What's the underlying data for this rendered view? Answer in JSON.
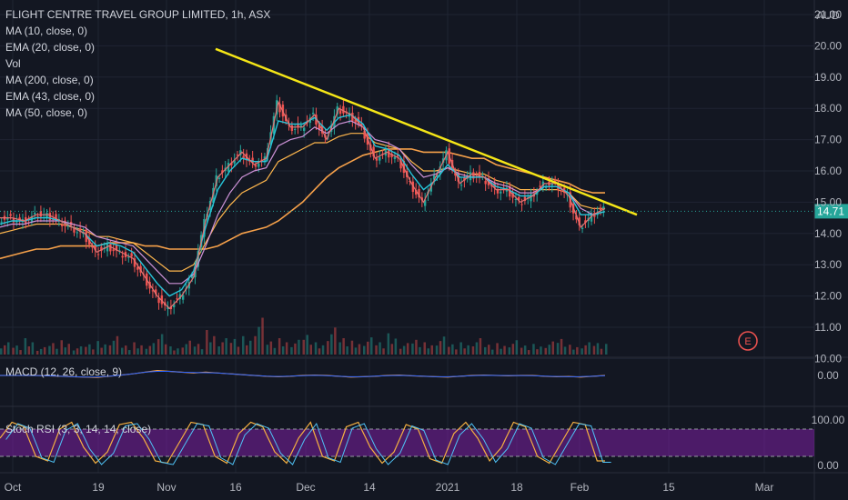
{
  "window": {
    "symbol_line": "FLIGHT CENTRE TRAVEL GROUP LIMITED, 1h, ASX",
    "indicators": [
      "MA (10, close, 0)",
      "EMA (20, close, 0)",
      "Vol",
      "MA (200, close, 0)",
      "EMA (43, close, 0)",
      "MA (50, close, 0)"
    ],
    "currency": "AUD",
    "last_price": "14.71",
    "earnings_marker": "E"
  },
  "colors": {
    "background": "#131722",
    "grid": "#1f2433",
    "up": "#26a69a",
    "down": "#ef5350",
    "trendline": "#f5e617",
    "ma10": "#e57373",
    "ema20": "#26c6da",
    "ma200": "#f7a14a",
    "ema43": "#ffb74d",
    "ma50": "#ce93d8",
    "stoch_band": "#7b1fa2"
  },
  "chart_data": [
    {
      "type": "candlestick",
      "title": "FLIGHT CENTRE TRAVEL GROUP LIMITED, 1h, ASX",
      "ylabel": "AUD",
      "ylim": [
        9.6,
        21.0
      ],
      "yticks": [
        "10.00",
        "11.00",
        "12.00",
        "13.00",
        "14.00",
        "15.00",
        "16.00",
        "17.00",
        "18.00",
        "19.00",
        "20.00",
        "21.00"
      ],
      "xticks": [
        "Oct",
        "19",
        "Nov",
        "16",
        "Dec",
        "14",
        "2021",
        "18",
        "Feb",
        "15",
        "Mar"
      ],
      "last_price": 14.71,
      "series": [
        {
          "name": "MA (10, close, 0)",
          "values": [
            14.5,
            14.5,
            14.4,
            14.6,
            14.6,
            14.4,
            14.2,
            14.0,
            13.4,
            13.6,
            13.4,
            13.2,
            12.6,
            12.0,
            11.6,
            12.0,
            12.6,
            14.4,
            15.8,
            16.2,
            16.6,
            16.2,
            16.4,
            18.2,
            17.4,
            17.4,
            17.8,
            17.0,
            18.0,
            17.8,
            17.4,
            16.4,
            16.6,
            16.4,
            15.6,
            15.0,
            15.8,
            16.6,
            15.6,
            15.9,
            15.8,
            15.4,
            15.4,
            15.0,
            15.2,
            15.6,
            15.6,
            15.2,
            14.2,
            14.6,
            14.8
          ]
        },
        {
          "name": "EMA (20, close, 0)",
          "values": [
            14.3,
            14.4,
            14.4,
            14.5,
            14.5,
            14.4,
            14.2,
            14.0,
            13.6,
            13.7,
            13.6,
            13.4,
            12.9,
            12.4,
            12.0,
            12.2,
            12.8,
            14.2,
            15.4,
            16.0,
            16.4,
            16.3,
            16.3,
            17.6,
            17.5,
            17.5,
            17.7,
            17.3,
            17.7,
            17.8,
            17.5,
            16.8,
            16.7,
            16.5,
            15.9,
            15.4,
            15.7,
            16.2,
            15.8,
            15.8,
            15.8,
            15.5,
            15.4,
            15.2,
            15.2,
            15.5,
            15.5,
            15.3,
            14.6,
            14.6,
            14.7
          ]
        },
        {
          "name": "MA (200, close, 0)",
          "values": [
            13.2,
            13.3,
            13.4,
            13.5,
            13.5,
            13.6,
            13.6,
            13.6,
            13.6,
            13.7,
            13.7,
            13.7,
            13.6,
            13.6,
            13.5,
            13.5,
            13.5,
            13.5,
            13.6,
            13.8,
            14.0,
            14.1,
            14.2,
            14.4,
            14.7,
            15.0,
            15.4,
            15.8,
            16.1,
            16.3,
            16.5,
            16.6,
            16.7,
            16.7,
            16.7,
            16.6,
            16.6,
            16.6,
            16.5,
            16.4,
            16.4,
            16.2,
            16.1,
            16.0,
            15.9,
            15.8,
            15.7,
            15.6,
            15.4,
            15.3,
            15.3
          ]
        },
        {
          "name": "EMA (43, close, 0)",
          "values": [
            14.0,
            14.1,
            14.2,
            14.3,
            14.3,
            14.3,
            14.2,
            14.1,
            13.9,
            13.9,
            13.8,
            13.7,
            13.4,
            13.1,
            12.8,
            12.8,
            13.0,
            13.7,
            14.4,
            14.9,
            15.3,
            15.5,
            15.7,
            16.3,
            16.5,
            16.7,
            16.9,
            16.9,
            17.1,
            17.2,
            17.2,
            16.9,
            16.8,
            16.7,
            16.3,
            16.0,
            16.0,
            16.1,
            16.0,
            15.9,
            15.9,
            15.7,
            15.6,
            15.4,
            15.4,
            15.4,
            15.4,
            15.3,
            14.9,
            14.8,
            14.8
          ]
        },
        {
          "name": "MA (50, close, 0)",
          "values": [
            14.2,
            14.3,
            14.3,
            14.4,
            14.4,
            14.4,
            14.3,
            14.2,
            13.9,
            13.8,
            13.7,
            13.6,
            13.2,
            12.8,
            12.4,
            12.4,
            12.7,
            13.6,
            14.6,
            15.3,
            15.8,
            16.0,
            16.1,
            16.8,
            17.0,
            17.1,
            17.4,
            17.2,
            17.5,
            17.6,
            17.4,
            17.0,
            16.9,
            16.7,
            16.2,
            15.8,
            15.9,
            16.1,
            15.9,
            15.8,
            15.8,
            15.6,
            15.5,
            15.3,
            15.3,
            15.5,
            15.5,
            15.3,
            14.8,
            14.6,
            14.7
          ]
        }
      ],
      "trendline": {
        "start": 19.9,
        "end": 14.6
      }
    },
    {
      "type": "bar",
      "title": "Vol",
      "ylim": [
        0,
        100
      ],
      "values": [
        30,
        22,
        40,
        18,
        28,
        35,
        20,
        25,
        33,
        45,
        22,
        30,
        28,
        50,
        20,
        34,
        26,
        60,
        40,
        38,
        45,
        90,
        32,
        40,
        36,
        48,
        30,
        66,
        40,
        34,
        42,
        30,
        52,
        28,
        36,
        30,
        44,
        25,
        30,
        40,
        24,
        28,
        35,
        22,
        26,
        32,
        38,
        24,
        30,
        28,
        26
      ]
    },
    {
      "type": "line",
      "title": "MACD (12, 26, close, 9)",
      "yticks": [
        "0.00"
      ],
      "values": [
        0.0,
        0.0,
        0.0,
        0.0,
        -0.02,
        -0.05,
        -0.08,
        -0.1,
        -0.12,
        -0.05,
        0.02,
        0.1,
        0.2,
        0.3,
        0.25,
        0.2,
        0.15,
        0.2,
        0.15,
        0.1,
        0.05,
        0.0,
        -0.05,
        -0.08,
        -0.05,
        0.0,
        0.02,
        0.0,
        -0.05,
        -0.1,
        -0.08,
        -0.05,
        0.0,
        0.02,
        -0.02,
        -0.05,
        -0.08,
        -0.1,
        -0.05,
        0.0,
        0.02,
        0.0,
        -0.02,
        0.0,
        0.0,
        -0.05,
        -0.08,
        -0.06,
        -0.1,
        -0.05,
        0.0
      ]
    },
    {
      "type": "line",
      "title": "Stoch RSI (3, 3, 14, 14, close)",
      "ylim": [
        0,
        100
      ],
      "yticks": [
        "100.00",
        "0.00"
      ],
      "band": [
        20,
        80
      ],
      "values": [
        60,
        95,
        85,
        20,
        10,
        80,
        95,
        40,
        5,
        30,
        90,
        95,
        60,
        10,
        5,
        50,
        95,
        90,
        20,
        5,
        70,
        95,
        85,
        30,
        5,
        60,
        95,
        20,
        10,
        85,
        95,
        40,
        5,
        30,
        90,
        80,
        15,
        5,
        70,
        95,
        60,
        10,
        40,
        95,
        85,
        20,
        5,
        50,
        95,
        90,
        10
      ]
    }
  ]
}
